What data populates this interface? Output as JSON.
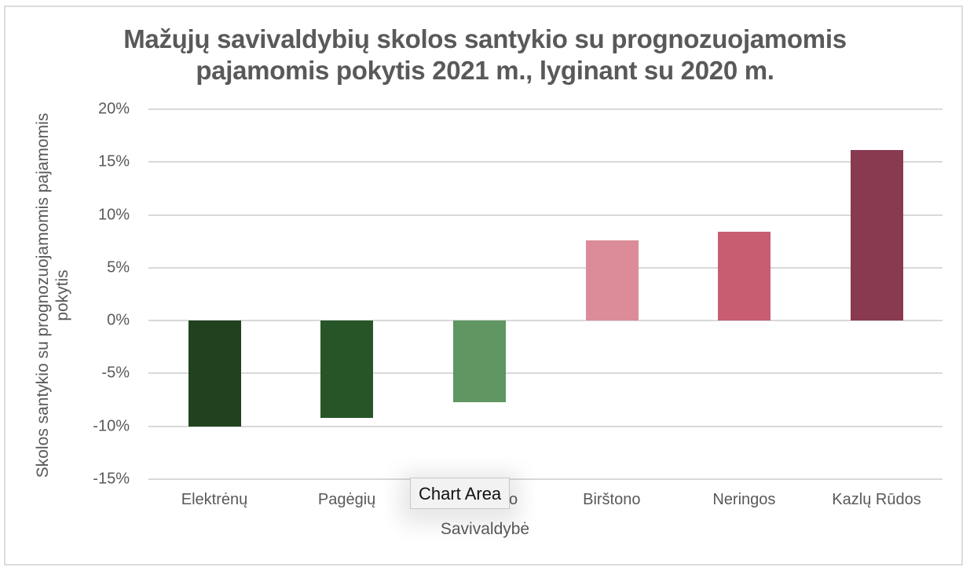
{
  "chart_data": {
    "type": "bar",
    "title": "Mažųjų savivaldybių skolos santykio su prognozuojamomis pajamomis pokytis 2021 m., lyginant su 2020 m.",
    "title_lines": [
      "Mažųjų savivaldybių skolos santykio su prognozuojamomis",
      "pajamomis pokytis 2021 m., lyginant su 2020 m."
    ],
    "xlabel": "Savivaldybė",
    "ylabel": "Skolos santykio su prognozuojamomis pajamomis pokytis",
    "ylabel_lines": [
      "Skolos santykio su prognozuojamomis pajamomis",
      "pokytis"
    ],
    "categories": [
      "Elektrėnų",
      "Pagėgių",
      "no",
      "Birštono",
      "Neringos",
      "Kazlų Rūdos"
    ],
    "values": [
      -10.0,
      -9.2,
      -7.7,
      7.6,
      8.4,
      16.1
    ],
    "value_unit": "%",
    "colors": [
      "#22421f",
      "#285528",
      "#5f9661",
      "#db8c98",
      "#c85d72",
      "#8a3a50"
    ],
    "ylim": [
      -15,
      20
    ],
    "yticks": [
      20,
      15,
      10,
      5,
      0,
      -5,
      -10,
      -15
    ],
    "ytick_labels": [
      "20%",
      "15%",
      "10%",
      "5%",
      "0%",
      "-5%",
      "-10%",
      "-15%"
    ],
    "grid": true,
    "legend": null
  },
  "tooltip": {
    "text": "Chart Area"
  }
}
